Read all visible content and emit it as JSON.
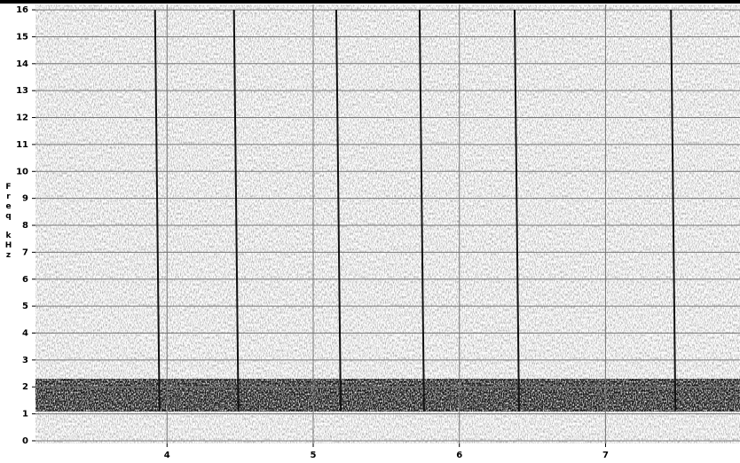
{
  "chart_data": {
    "type": "spectrogram",
    "axis_label": "Freq kHz",
    "xlim": [
      3.1,
      7.92
    ],
    "xticks": [
      4,
      5,
      6,
      7
    ],
    "ylim": [
      -0.1,
      16.2
    ],
    "yticks": [
      0,
      1,
      2,
      3,
      4,
      5,
      6,
      7,
      8,
      9,
      10,
      11,
      12,
      13,
      14,
      15,
      16
    ],
    "grid": true,
    "clicks": {
      "x": [
        3.93,
        4.47,
        5.17,
        5.74,
        6.39,
        7.46
      ],
      "top": [
        16,
        16,
        16,
        16,
        16,
        16
      ]
    },
    "noise_band": [
      1.1,
      2.3
    ]
  }
}
